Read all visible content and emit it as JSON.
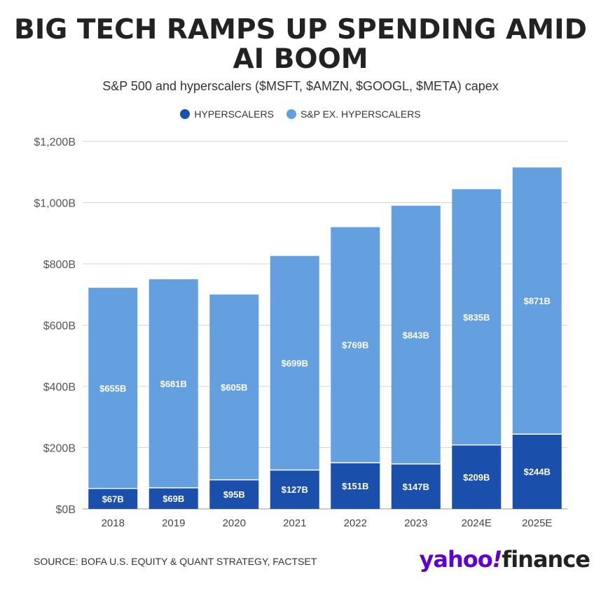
{
  "title": "BIG TECH RAMPS UP SPENDING AMID AI BOOM",
  "subtitle": "S&P 500 and hyperscalers ($MSFT, $AMZN, $GOOGL, $META) capex",
  "source": "SOURCE: BOFA U.S. EQUITY & QUANT STRATEGY, FACTSET",
  "logo": {
    "brand": "yahoo",
    "bang": "!",
    "product": "finance"
  },
  "colors": {
    "hyperscalers": "#1a4fab",
    "sp_ex": "#64a0e0",
    "grid": "#d4d4d4",
    "text": "#333333"
  },
  "chart_data": {
    "type": "bar",
    "stacked": true,
    "categories": [
      "2018",
      "2019",
      "2020",
      "2021",
      "2022",
      "2023",
      "2024E",
      "2025E"
    ],
    "series": [
      {
        "name": "HYPERSCALERS",
        "values": [
          67,
          69,
          95,
          127,
          151,
          147,
          209,
          244
        ],
        "labels": [
          "$67B",
          "$69B",
          "$95B",
          "$127B",
          "$151B",
          "$147B",
          "$209B",
          "$244B"
        ]
      },
      {
        "name": "S&P EX. HYPERSCALERS",
        "values": [
          655,
          681,
          605,
          699,
          769,
          843,
          835,
          871
        ],
        "labels": [
          "$655B",
          "$681B",
          "$605B",
          "$699B",
          "$769B",
          "$843B",
          "$835B",
          "$871B"
        ]
      }
    ],
    "ylim": [
      0,
      1200
    ],
    "yticks": [
      0,
      200,
      400,
      600,
      800,
      1000,
      1200
    ],
    "ytick_labels": [
      "$0B",
      "$200B",
      "$400B",
      "$600B",
      "$800B",
      "$1,000B",
      "$1,200B"
    ],
    "grid": true,
    "legend_position": "top"
  }
}
